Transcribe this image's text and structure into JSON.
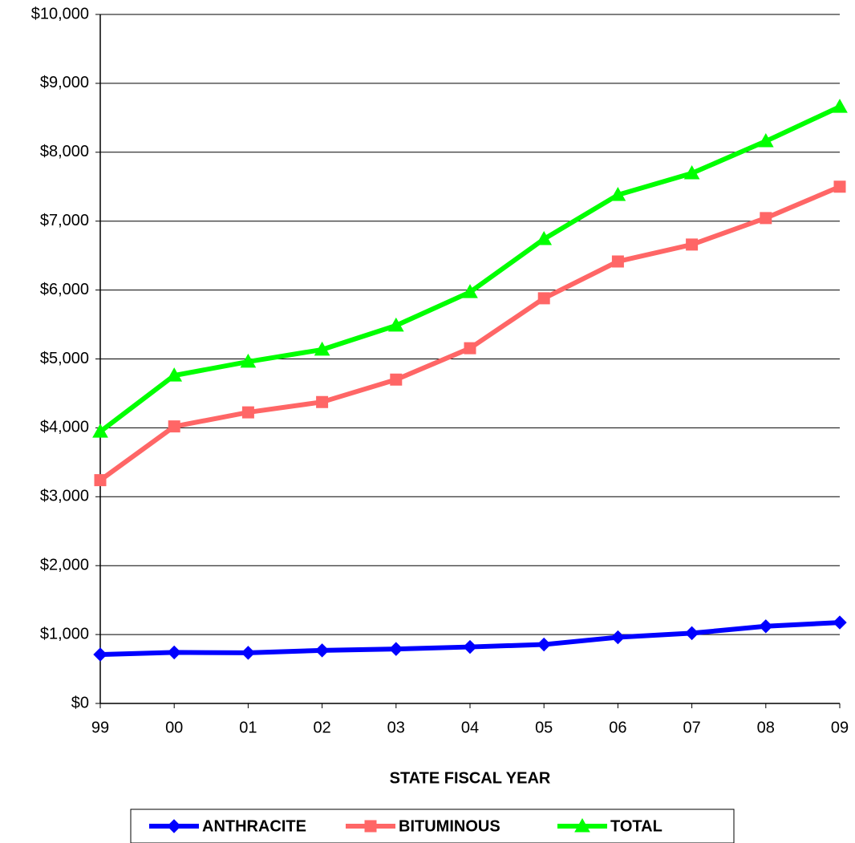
{
  "chart_data": {
    "type": "line",
    "x_label": "STATE FISCAL YEAR",
    "categories": [
      "99",
      "00",
      "01",
      "02",
      "03",
      "04",
      "05",
      "06",
      "07",
      "08",
      "09"
    ],
    "series": [
      {
        "name": "ANTHRACITE",
        "color": "#0000ff",
        "marker": "diamond",
        "values": [
          710,
          740,
          735,
          770,
          790,
          820,
          855,
          960,
          1020,
          1120,
          1175
        ]
      },
      {
        "name": "BITUMINOUS",
        "color": "#ff6666",
        "marker": "square",
        "values": [
          3240,
          4020,
          4225,
          4375,
          4700,
          5155,
          5880,
          6415,
          6660,
          7045,
          7500
        ]
      },
      {
        "name": "TOTAL",
        "color": "#00ff00",
        "marker": "triangle",
        "values": [
          3945,
          4760,
          4960,
          5135,
          5485,
          5970,
          6740,
          7380,
          7695,
          8160,
          8660
        ]
      }
    ],
    "ylim": [
      0,
      10000
    ],
    "yticks": [
      {
        "value": 0,
        "label": "$0"
      },
      {
        "value": 1000,
        "label": "$1,000"
      },
      {
        "value": 2000,
        "label": "$2,000"
      },
      {
        "value": 3000,
        "label": "$3,000"
      },
      {
        "value": 4000,
        "label": "$4,000"
      },
      {
        "value": 5000,
        "label": "$5,000"
      },
      {
        "value": 6000,
        "label": "$6,000"
      },
      {
        "value": 7000,
        "label": "$7,000"
      },
      {
        "value": 8000,
        "label": "$8,000"
      },
      {
        "value": 9000,
        "label": "$9,000"
      },
      {
        "value": 10000,
        "label": "$10,000"
      }
    ],
    "grid": true,
    "legend": "bottom"
  }
}
